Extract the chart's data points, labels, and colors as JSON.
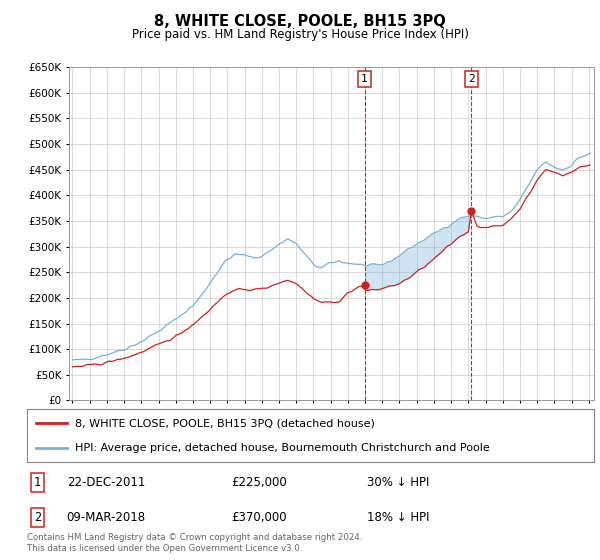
{
  "title": "8, WHITE CLOSE, POOLE, BH15 3PQ",
  "subtitle": "Price paid vs. HM Land Registry's House Price Index (HPI)",
  "hpi_color": "#7bafd4",
  "price_color": "#cc2222",
  "shade_color": "#ddeeff",
  "ylim": [
    0,
    650000
  ],
  "yticks": [
    0,
    50000,
    100000,
    150000,
    200000,
    250000,
    300000,
    350000,
    400000,
    450000,
    500000,
    550000,
    600000,
    650000
  ],
  "sale1_year": 2011.97,
  "sale1_price": 225000,
  "sale1_label": "1",
  "sale1_date": "22-DEC-2011",
  "sale1_pct": "30% ↓ HPI",
  "sale2_year": 2018.18,
  "sale2_price": 370000,
  "sale2_label": "2",
  "sale2_date": "09-MAR-2018",
  "sale2_pct": "18% ↓ HPI",
  "legend_line1": "8, WHITE CLOSE, POOLE, BH15 3PQ (detached house)",
  "legend_line2": "HPI: Average price, detached house, Bournemouth Christchurch and Poole",
  "footnote": "Contains HM Land Registry data © Crown copyright and database right 2024.\nThis data is licensed under the Open Government Licence v3.0.",
  "xlim": [
    1994.8,
    2025.3
  ],
  "xticks": [
    1995,
    1996,
    1997,
    1998,
    1999,
    2000,
    2001,
    2002,
    2003,
    2004,
    2005,
    2006,
    2007,
    2008,
    2009,
    2010,
    2011,
    2012,
    2013,
    2014,
    2015,
    2016,
    2017,
    2018,
    2019,
    2020,
    2021,
    2022,
    2023,
    2024,
    2025
  ]
}
